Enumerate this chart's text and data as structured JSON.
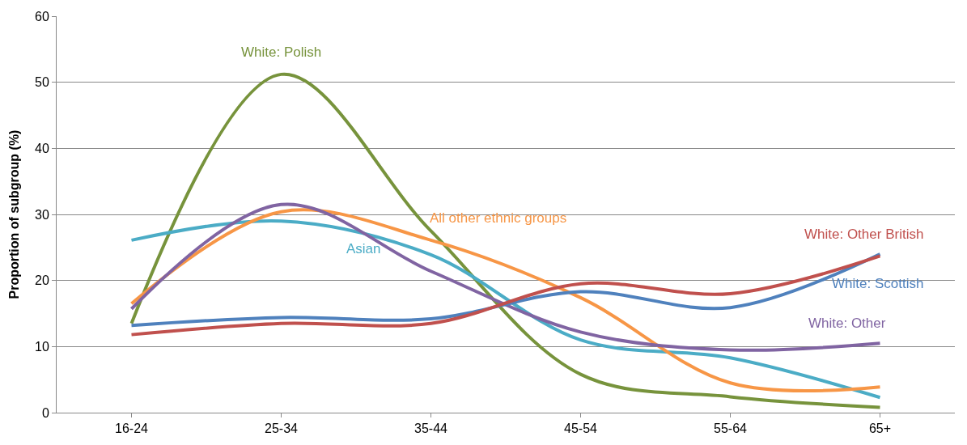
{
  "chart_data": {
    "type": "line",
    "ylabel": "Proportion of subgroup (%)",
    "categories": [
      "16-24",
      "25-34",
      "35-44",
      "45-54",
      "55-64",
      "65+"
    ],
    "series": [
      {
        "name": "White: Polish",
        "color": "#77933c",
        "values": [
          13.5,
          51.2,
          27.5,
          5.8,
          2.4,
          0.8
        ]
      },
      {
        "name": "Asian",
        "color": "#4bacc6",
        "values": [
          26.1,
          29.0,
          23.9,
          11.0,
          8.3,
          2.3
        ]
      },
      {
        "name": "All other ethnic groups",
        "color": "#f79646",
        "values": [
          16.5,
          30.4,
          26.1,
          17.4,
          4.5,
          3.9
        ]
      },
      {
        "name": "White: Other",
        "color": "#8064a2",
        "values": [
          15.7,
          31.5,
          21.4,
          12.2,
          9.5,
          10.5
        ]
      },
      {
        "name": "White: Scottish",
        "color": "#4f81bd",
        "values": [
          13.2,
          14.4,
          14.2,
          18.3,
          15.9,
          24.0
        ]
      },
      {
        "name": "White: Other British",
        "color": "#c0504d",
        "values": [
          11.8,
          13.5,
          13.5,
          19.5,
          18.0,
          23.7
        ]
      }
    ],
    "ylim": [
      0,
      60
    ],
    "yticks": [
      0,
      10,
      20,
      30,
      40,
      50,
      60
    ],
    "grid": "y",
    "legend": false,
    "marker": "none",
    "line_style": "solid"
  }
}
